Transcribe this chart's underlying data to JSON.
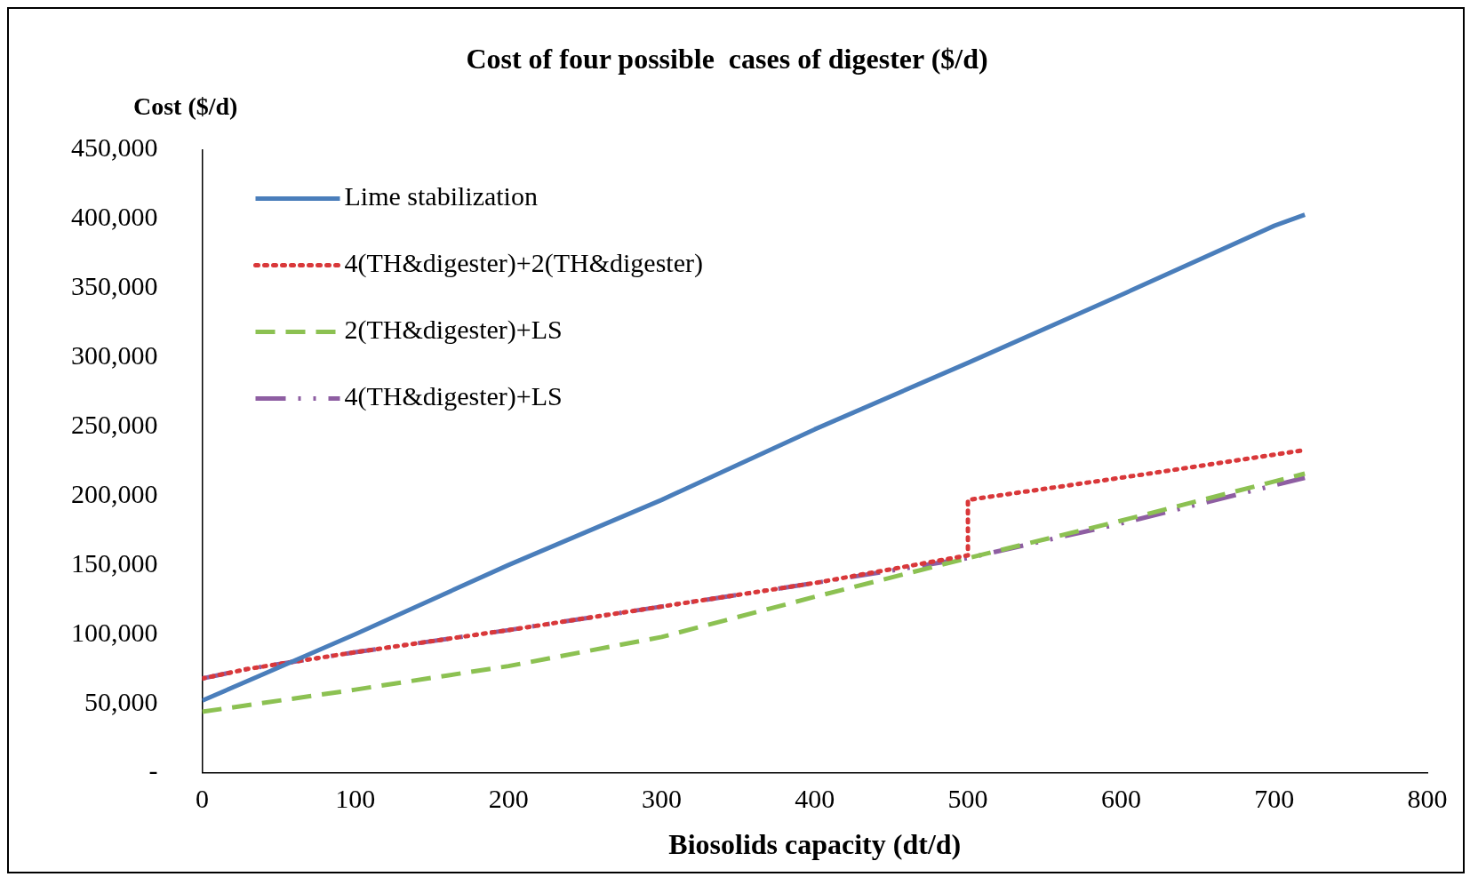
{
  "chart_data": {
    "type": "line",
    "title": "Cost of four possible  cases of digester ($/d)",
    "ylabel": "Cost ($/d)",
    "xlabel": "Biosolids capacity (dt/d)",
    "xlim": [
      0,
      800
    ],
    "xticks": [
      0,
      100,
      200,
      300,
      400,
      500,
      600,
      700,
      800
    ],
    "ylim": [
      0,
      450000
    ],
    "yticks": [
      {
        "value": 0,
        "label": "-"
      },
      {
        "value": 50000,
        "label": "50,000"
      },
      {
        "value": 100000,
        "label": "100,000"
      },
      {
        "value": 150000,
        "label": "150,000"
      },
      {
        "value": 200000,
        "label": "200,000"
      },
      {
        "value": 250000,
        "label": "250,000"
      },
      {
        "value": 300000,
        "label": "300,000"
      },
      {
        "value": 350000,
        "label": "350,000"
      },
      {
        "value": 400000,
        "label": "400,000"
      },
      {
        "value": 450000,
        "label": "450,000"
      }
    ],
    "grid": false,
    "legend": "top left",
    "marker": "none",
    "series": [
      {
        "name": "Lime stabilization",
        "color": "#4a7ebb",
        "line_style": "solid",
        "x": [
          0,
          100,
          200,
          300,
          400,
          500,
          600,
          700,
          720
        ],
        "values": [
          52000,
          100000,
          150000,
          197000,
          248000,
          296000,
          345000,
          395000,
          403000
        ]
      },
      {
        "name": "4(TH&digester)+2(TH&digester)",
        "color": "#d9383a",
        "line_style": "dotted",
        "x": [
          0,
          30,
          100,
          200,
          300,
          400,
          500,
          500,
          600,
          720
        ],
        "values": [
          68000,
          75000,
          87000,
          103000,
          120000,
          137000,
          157000,
          197000,
          213000,
          233000
        ]
      },
      {
        "name": "2(TH&digester)+LS",
        "color": "#8cc152",
        "line_style": "dashed",
        "x": [
          0,
          100,
          200,
          300,
          400,
          500,
          600,
          720
        ],
        "values": [
          44000,
          60000,
          77000,
          98000,
          127000,
          155000,
          182000,
          216000
        ]
      },
      {
        "name": "4(TH&digester)+LS",
        "color": "#8e5ea2",
        "line_style": "dashdot",
        "x": [
          0,
          30,
          100,
          200,
          300,
          400,
          500,
          600,
          720
        ],
        "values": [
          68000,
          75000,
          87000,
          103000,
          120000,
          137000,
          155000,
          180000,
          213000
        ]
      }
    ]
  }
}
